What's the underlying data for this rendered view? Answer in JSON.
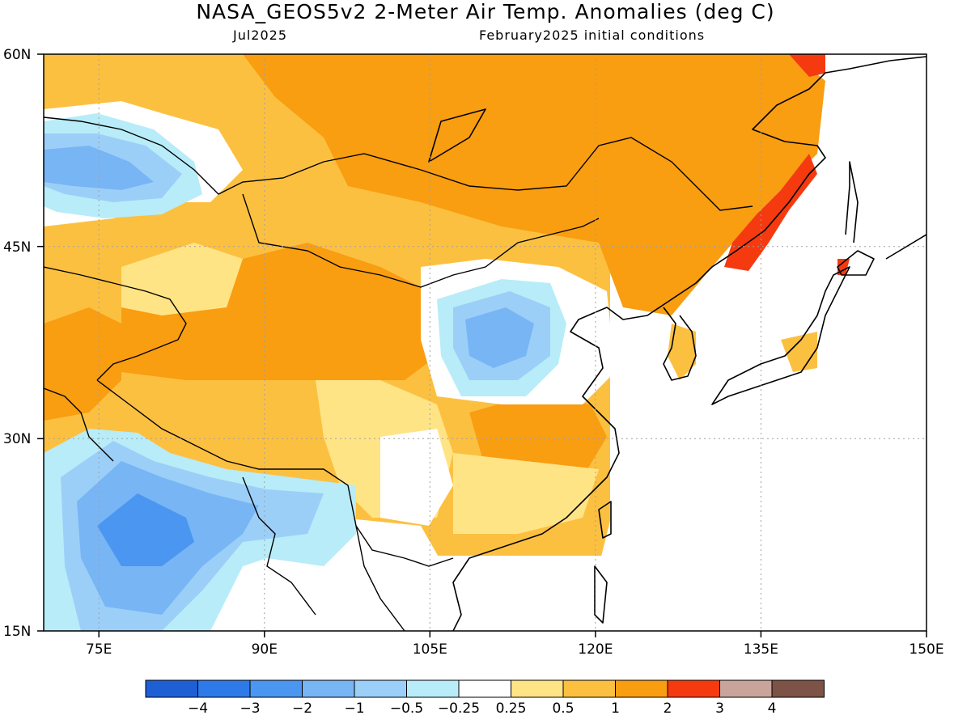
{
  "title": "NASA_GEOS5v2 2-Meter Air Temp. Anomalies (deg C)",
  "subtitle_left": "Jul2025",
  "subtitle_right": "February2025 initial conditions",
  "map": {
    "region": "East Asia",
    "lon_range": [
      70,
      150
    ],
    "lat_range": [
      15,
      60
    ],
    "lat_labels": [
      "60N",
      "45N",
      "30N",
      "15N"
    ],
    "lon_labels": [
      "75E",
      "90E",
      "105E",
      "120E",
      "135E",
      "150E"
    ]
  },
  "colorbar": {
    "colors": [
      "#1f5fd6",
      "#2e7ae8",
      "#4a96f0",
      "#78b5f5",
      "#9ccff8",
      "#b8ecf8",
      "#ffffff",
      "#ffe486",
      "#fcc041",
      "#f99d11",
      "#f53a10",
      "#c9a49a",
      "#7c5346"
    ],
    "labels": [
      "-4",
      "-3",
      "-2",
      "-1",
      "-0.5",
      "-0.25",
      "0.25",
      "0.5",
      "1",
      "2",
      "3",
      "4"
    ]
  }
}
